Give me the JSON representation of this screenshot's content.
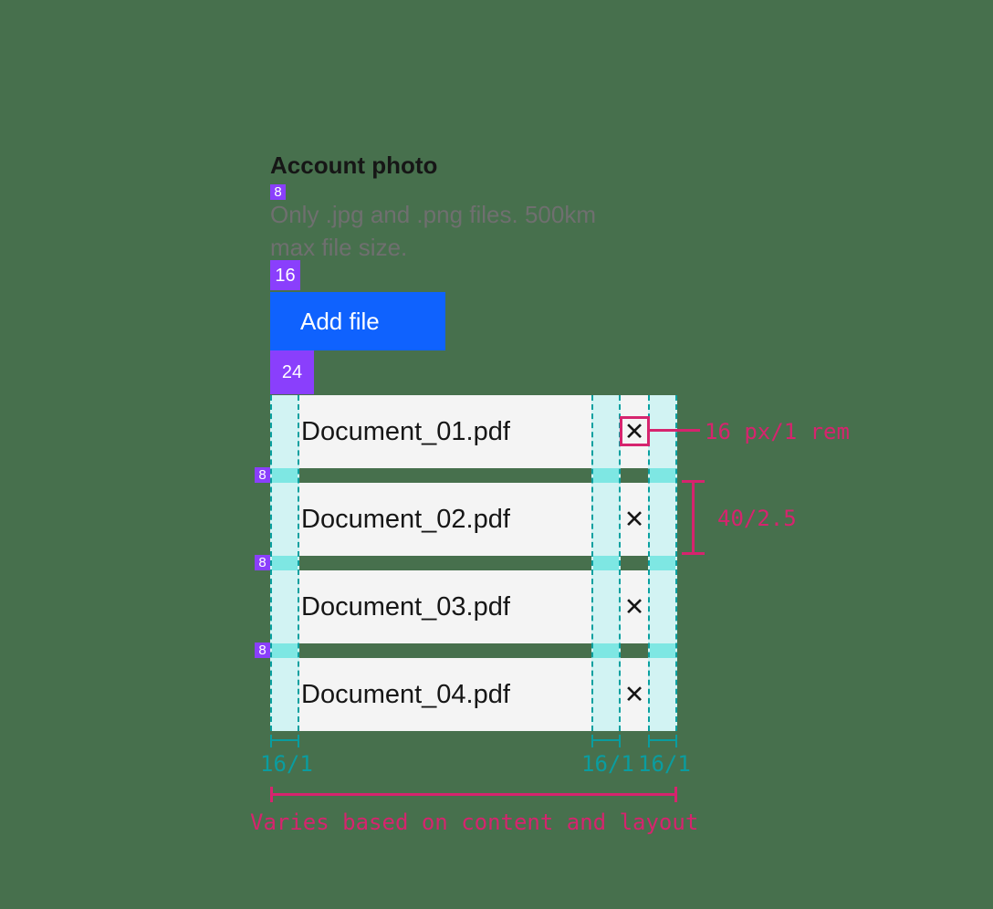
{
  "colors": {
    "background": "#47704d",
    "badge_purple": "#8a3ffc",
    "button_blue": "#0f62fe",
    "row_gray": "#f4f4f4",
    "annotation_pink": "#d6246e",
    "annotation_teal": "#0a9da0",
    "column_cyan": "#d2f3f3",
    "column_cyan_bright": "#7ee7e3",
    "text_primary": "#161616",
    "text_helper": "#6f6f6f"
  },
  "header": {
    "title": "Account photo",
    "helper_line1": "Only .jpg and .png files. 500km",
    "helper_line2": "max file size."
  },
  "button": {
    "label": "Add file"
  },
  "spacing_badges": {
    "title_gap": "8",
    "helper_gap": "16",
    "button_gap": "24",
    "row_gap": "8"
  },
  "list": {
    "rows": [
      {
        "filename": "Document_01.pdf"
      },
      {
        "filename": "Document_02.pdf"
      },
      {
        "filename": "Document_03.pdf"
      },
      {
        "filename": "Document_04.pdf"
      }
    ],
    "close_icon_glyph": "✕"
  },
  "annotations": {
    "close_icon_size": "16 px/1 rem",
    "row_height": "40/2.5",
    "padding_left": "16/1",
    "padding_inner": "16/1",
    "padding_right": "16/1",
    "width_note": "Varies based on content and layout"
  }
}
